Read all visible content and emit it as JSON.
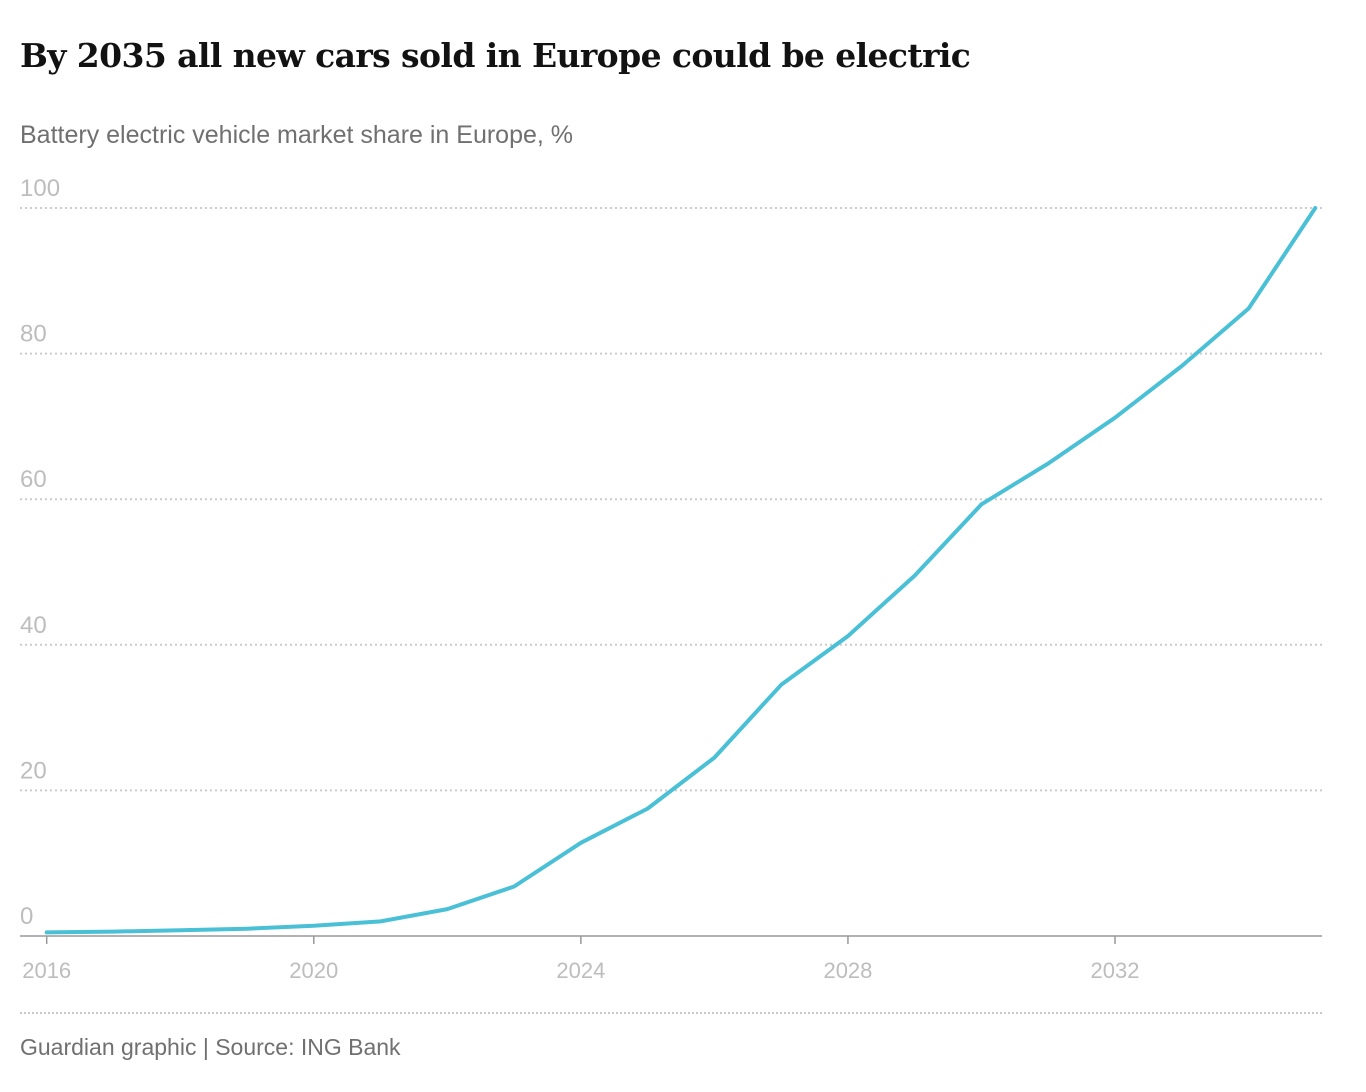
{
  "header": {
    "title": "By 2035 all new cars sold in Europe could be electric",
    "subtitle": "Battery electric vehicle market share in Europe, %"
  },
  "footer": {
    "source": "Guardian graphic | Source: ING Bank"
  },
  "colors": {
    "line": "#4ac0d6",
    "grid": "#cccccc",
    "tick_text": "#bdbdbd",
    "axis": "#999999"
  },
  "chart_data": {
    "type": "line",
    "title": "By 2035 all new cars sold in Europe could be electric",
    "subtitle": "Battery electric vehicle market share in Europe, %",
    "xlabel": "",
    "ylabel": "",
    "xlim": [
      2015.6,
      2035.1
    ],
    "ylim": [
      0,
      100
    ],
    "x_ticks": [
      2016,
      2020,
      2024,
      2028,
      2032
    ],
    "y_ticks": [
      0,
      20,
      40,
      60,
      80,
      100
    ],
    "grid": "horizontal dotted",
    "legend": "none",
    "series": [
      {
        "x": [
          2016,
          2017,
          2018,
          2019,
          2020,
          2021,
          2022,
          2023,
          2024,
          2025,
          2026,
          2027,
          2028,
          2029,
          2030,
          2031,
          2032,
          2033,
          2034,
          2035
        ],
        "values": [
          0.5,
          0.6,
          0.8,
          1.0,
          1.4,
          2.0,
          3.7,
          6.8,
          12.8,
          17.5,
          24.5,
          34.5,
          41.2,
          49.5,
          59.3,
          64.9,
          71.2,
          78.3,
          86.2,
          100
        ]
      }
    ]
  }
}
